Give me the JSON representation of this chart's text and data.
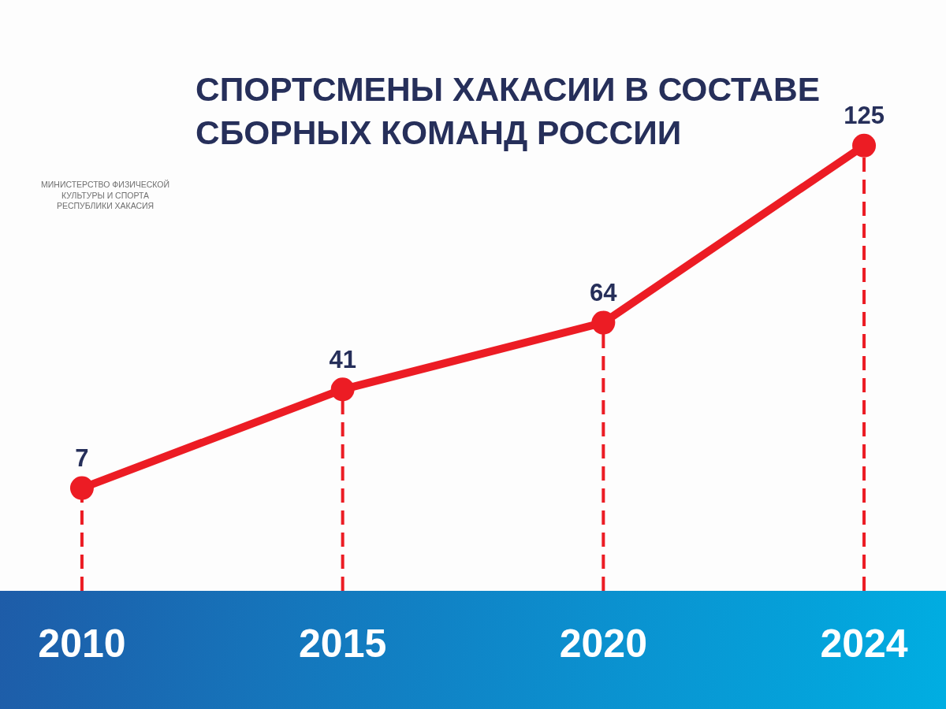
{
  "chart_data": {
    "type": "line",
    "title": "СПОРТСМЕНЫ ХАКАСИИ В СОСТАВЕ СБОРНЫХ КОМАНД РОССИИ",
    "annotations": [
      "МИНИСТЕРСТВО ФИЗИЧЕСКОЙ КУЛЬТУРЫ И СПОРТА РЕСПУБЛИКИ ХАКАСИЯ"
    ],
    "categories": [
      "2010",
      "2015",
      "2020",
      "2024"
    ],
    "series": [
      {
        "color": "#ec1c24",
        "values": [
          7,
          41,
          64,
          125
        ]
      }
    ],
    "data_labels": true,
    "marker": "circle",
    "line_style": "solid",
    "grid": "x",
    "tick_labels": "x"
  }
}
